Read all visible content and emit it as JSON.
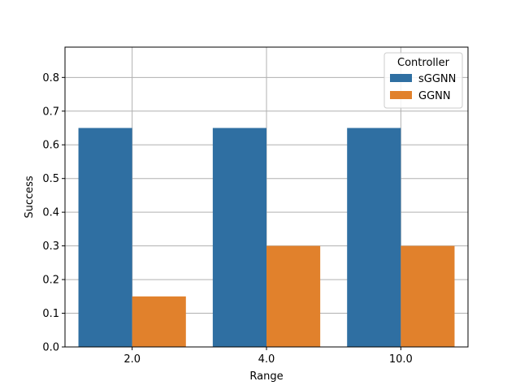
{
  "chart_data": {
    "type": "bar",
    "title": "",
    "xlabel": "Range",
    "ylabel": "Success",
    "categories": [
      "2.0",
      "4.0",
      "10.0"
    ],
    "series": [
      {
        "name": "sGGNN",
        "color": "#2f6fa2",
        "values": [
          0.65,
          0.65,
          0.65
        ]
      },
      {
        "name": "GGNN",
        "color": "#e1812c",
        "values": [
          0.15,
          0.3,
          0.3
        ]
      }
    ],
    "ylim": [
      0,
      0.89
    ],
    "yticks": [
      "0.0",
      "0.1",
      "0.2",
      "0.3",
      "0.4",
      "0.5",
      "0.6",
      "0.7",
      "0.8"
    ],
    "grid": true,
    "legend": {
      "title": "Controller",
      "placement": "top-right"
    }
  }
}
